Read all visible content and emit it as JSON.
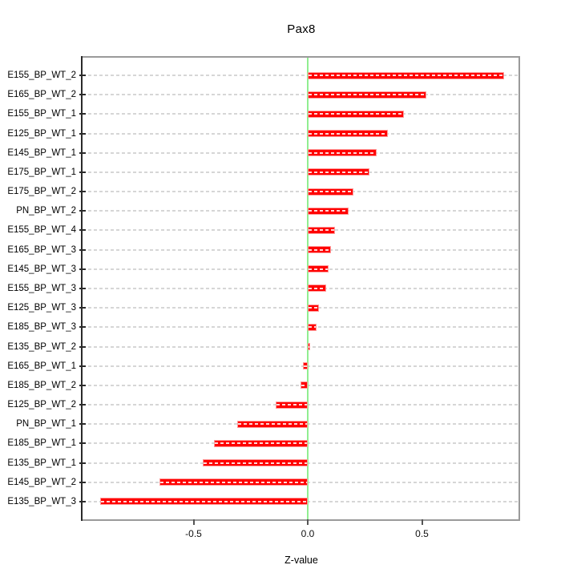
{
  "chart_data": {
    "type": "bar",
    "orientation": "horizontal",
    "title": "Pax8",
    "xlabel": "Z-value",
    "categories": [
      "E155_BP_WT_2",
      "E165_BP_WT_2",
      "E155_BP_WT_1",
      "E125_BP_WT_1",
      "E145_BP_WT_1",
      "E175_BP_WT_1",
      "E175_BP_WT_2",
      "PN_BP_WT_2",
      "E155_BP_WT_4",
      "E165_BP_WT_3",
      "E145_BP_WT_3",
      "E155_BP_WT_3",
      "E125_BP_WT_3",
      "E185_BP_WT_3",
      "E135_BP_WT_2",
      "E165_BP_WT_1",
      "E185_BP_WT_2",
      "E125_BP_WT_2",
      "PN_BP_WT_1",
      "E185_BP_WT_1",
      "E135_BP_WT_1",
      "E145_BP_WT_2",
      "E135_BP_WT_3"
    ],
    "values": [
      0.86,
      0.52,
      0.42,
      0.35,
      0.3,
      0.27,
      0.2,
      0.18,
      0.12,
      0.1,
      0.09,
      0.08,
      0.05,
      0.04,
      0.01,
      -0.02,
      -0.03,
      -0.14,
      -0.31,
      -0.41,
      -0.46,
      -0.65,
      -0.91
    ],
    "xticks": [
      -0.5,
      0.0,
      0.5
    ],
    "xtick_labels": [
      "-0.5",
      "0.0",
      "0.5"
    ],
    "xlim": [
      -0.98,
      0.93
    ],
    "grid": "horizontal dashed per category",
    "legend": "none",
    "colors": {
      "bar": "#ff0000",
      "bar_edge": "#ff9a9a",
      "zero_line": "#90ee90",
      "grid_line": "#d6d6d6",
      "box_border": "#9a9a9a",
      "left_axis": "#2b2b2b",
      "text": "#000000"
    }
  }
}
